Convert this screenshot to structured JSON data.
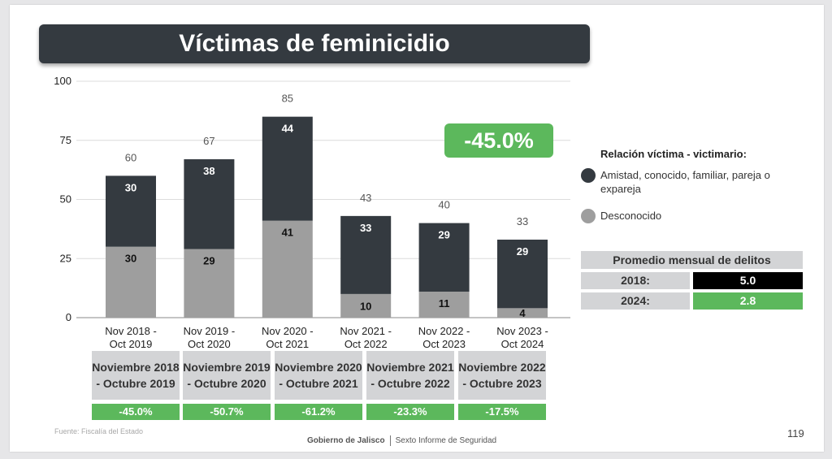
{
  "slide": {
    "title": "Víctimas de feminicidio",
    "badge": "-45.0%",
    "legend": {
      "title": "Relación víctima - victimario:",
      "items": [
        {
          "label": "Amistad, conocido, familiar, pareja o expareja",
          "color": "#343a40"
        },
        {
          "label": "Desconocido",
          "color": "#9e9e9e"
        }
      ]
    },
    "avg_table": {
      "header": "Promedio mensual de delitos",
      "rows": [
        {
          "year": "2018:",
          "value": "5.0",
          "color": "#000000"
        },
        {
          "year": "2024:",
          "value": "2.8",
          "color": "#5cb85c"
        }
      ]
    },
    "comparison": [
      {
        "period": "Noviembre 2018 - Octubre 2019",
        "change": "-45.0%"
      },
      {
        "period": "Noviembre 2019 - Octubre 2020",
        "change": "-50.7%"
      },
      {
        "period": "Noviembre 2020 - Octubre 2021",
        "change": "-61.2%"
      },
      {
        "period": "Noviembre 2021 - Octubre 2022",
        "change": "-23.3%"
      },
      {
        "period": "Noviembre 2022 - Octubre 2023",
        "change": "-17.5%"
      }
    ],
    "source": "Fuente: Fiscalía del Estado",
    "footer_left": "Gobierno de Jalisco",
    "footer_right": "Sexto Informe de Seguridad",
    "page_number": "119"
  },
  "chart_data": {
    "type": "bar",
    "stacked": true,
    "categories": [
      "Nov 2018 - Oct 2019",
      "Nov 2019 - Oct 2020",
      "Nov 2020 - Oct 2021",
      "Nov 2021 - Oct 2022",
      "Nov 2022 - Oct 2023",
      "Nov 2023 - Oct 2024"
    ],
    "series": [
      {
        "name": "Desconocido",
        "values": [
          30,
          29,
          41,
          10,
          11,
          4
        ],
        "color": "#9e9e9e"
      },
      {
        "name": "Amistad, conocido, familiar, pareja o expareja",
        "values": [
          30,
          38,
          44,
          33,
          29,
          29
        ],
        "color": "#343a40"
      }
    ],
    "totals": [
      60,
      67,
      85,
      43,
      40,
      33
    ],
    "ylim": [
      0,
      100
    ],
    "yticks": [
      0,
      25,
      50,
      75,
      100
    ],
    "grid": true
  }
}
